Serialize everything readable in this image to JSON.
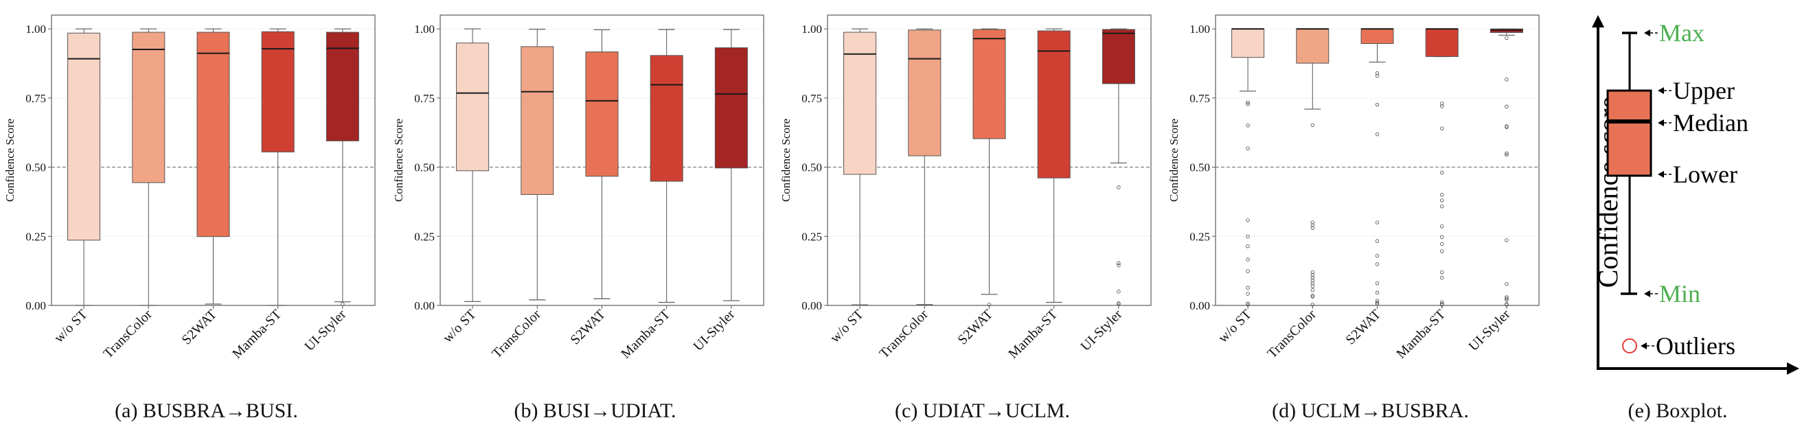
{
  "colors": [
    "#f7d4c4",
    "#f0a586",
    "#e87255",
    "#cf4033",
    "#a32524"
  ],
  "chart_data": [
    {
      "type": "boxplot",
      "caption": "(a) BUSBRA→BUSI.",
      "ylabel": "Confidence Score",
      "ylim": [
        0,
        1.05
      ],
      "yticks": [
        "0.00",
        "0.25",
        "0.50",
        "0.75",
        "1.00"
      ],
      "reference_line": 0.5,
      "categories": [
        "w/o ST",
        "TransColor",
        "S2WAT",
        "Mamba-ST",
        "UI-Styler"
      ],
      "boxes": [
        {
          "min": 0.0,
          "q1": 0.236,
          "median": 0.892,
          "q3": 0.985,
          "max": 1.0,
          "outliers": []
        },
        {
          "min": 0.0,
          "q1": 0.444,
          "median": 0.926,
          "q3": 0.988,
          "max": 1.0,
          "outliers": []
        },
        {
          "min": 0.005,
          "q1": 0.249,
          "median": 0.912,
          "q3": 0.988,
          "max": 1.0,
          "outliers": []
        },
        {
          "min": 0.0,
          "q1": 0.555,
          "median": 0.928,
          "q3": 0.99,
          "max": 1.0,
          "outliers": []
        },
        {
          "min": 0.013,
          "q1": 0.595,
          "median": 0.93,
          "q3": 0.988,
          "max": 1.0,
          "outliers": [
            0.005
          ]
        }
      ]
    },
    {
      "type": "boxplot",
      "caption": "(b) BUSI→UDIAT.",
      "ylabel": "Confidence Score",
      "ylim": [
        0,
        1.05
      ],
      "yticks": [
        "0.00",
        "0.25",
        "0.50",
        "0.75",
        "1.00"
      ],
      "reference_line": 0.5,
      "categories": [
        "w/o ST",
        "TransColor",
        "S2WAT",
        "Mamba-ST",
        "UI-Styler"
      ],
      "boxes": [
        {
          "min": 0.014,
          "q1": 0.487,
          "median": 0.768,
          "q3": 0.949,
          "max": 1.0,
          "outliers": []
        },
        {
          "min": 0.02,
          "q1": 0.401,
          "median": 0.773,
          "q3": 0.936,
          "max": 0.999,
          "outliers": []
        },
        {
          "min": 0.024,
          "q1": 0.467,
          "median": 0.74,
          "q3": 0.917,
          "max": 0.997,
          "outliers": []
        },
        {
          "min": 0.011,
          "q1": 0.449,
          "median": 0.798,
          "q3": 0.904,
          "max": 0.998,
          "outliers": []
        },
        {
          "min": 0.017,
          "q1": 0.497,
          "median": 0.765,
          "q3": 0.932,
          "max": 0.998,
          "outliers": []
        }
      ]
    },
    {
      "type": "boxplot",
      "caption": "(c) UDIAT→UCLM.",
      "ylabel": "Confidence Score",
      "ylim": [
        0,
        1.05
      ],
      "yticks": [
        "0.00",
        "0.25",
        "0.50",
        "0.75",
        "1.00"
      ],
      "reference_line": 0.5,
      "categories": [
        "w/o ST",
        "TransColor",
        "S2WAT",
        "Mamba-ST",
        "UI-Styler"
      ],
      "boxes": [
        {
          "min": 0.002,
          "q1": 0.474,
          "median": 0.909,
          "q3": 0.988,
          "max": 1.0,
          "outliers": []
        },
        {
          "min": 0.003,
          "q1": 0.541,
          "median": 0.892,
          "q3": 0.996,
          "max": 1.0,
          "outliers": []
        },
        {
          "min": 0.04,
          "q1": 0.603,
          "median": 0.965,
          "q3": 0.998,
          "max": 1.0,
          "outliers": [
            0.003
          ]
        },
        {
          "min": 0.011,
          "q1": 0.461,
          "median": 0.92,
          "q3": 0.993,
          "max": 1.0,
          "outliers": []
        },
        {
          "min": 0.515,
          "q1": 0.802,
          "median": 0.984,
          "q3": 0.998,
          "max": 1.0,
          "outliers": [
            0.427,
            0.153,
            0.145,
            0.05,
            0.008,
            0.004
          ]
        }
      ]
    },
    {
      "type": "boxplot",
      "caption": "(d) UCLM→BUSBRA.",
      "ylabel": "Confidence Score",
      "ylim": [
        0,
        1.05
      ],
      "yticks": [
        "0.00",
        "0.25",
        "0.50",
        "0.75",
        "1.00"
      ],
      "reference_line": 0.5,
      "categories": [
        "w/o ST",
        "TransColor",
        "S2WAT",
        "Mamba-ST",
        "UI-Styler"
      ],
      "boxes": [
        {
          "min": 0.775,
          "q1": 0.897,
          "median": 1.0,
          "q3": 1.0,
          "max": 1.0,
          "outliers": [
            0.734,
            0.728,
            0.651,
            0.568,
            0.308,
            0.249,
            0.214,
            0.166,
            0.124,
            0.064,
            0.042,
            0.007,
            0.003
          ]
        },
        {
          "min": 0.71,
          "q1": 0.876,
          "median": 1.0,
          "q3": 1.0,
          "max": 1.0,
          "outliers": [
            0.652,
            0.3,
            0.29,
            0.28,
            0.12,
            0.11,
            0.1,
            0.09,
            0.08,
            0.07,
            0.055,
            0.035,
            0.032,
            0.003
          ]
        },
        {
          "min": 0.88,
          "q1": 0.947,
          "median": 1.0,
          "q3": 1.0,
          "max": 1.0,
          "outliers": [
            0.84,
            0.83,
            0.726,
            0.619,
            0.3,
            0.233,
            0.179,
            0.149,
            0.08,
            0.046,
            0.017,
            0.01,
            0.005
          ]
        },
        {
          "min": 0.9,
          "q1": 0.9,
          "median": 1.0,
          "q3": 1.0,
          "max": 1.0,
          "outliers": [
            0.73,
            0.72,
            0.64,
            0.48,
            0.4,
            0.38,
            0.358,
            0.286,
            0.247,
            0.222,
            0.196,
            0.12,
            0.1,
            0.012,
            0.006,
            0.002
          ]
        },
        {
          "min": 0.977,
          "q1": 0.987,
          "median": 0.996,
          "q3": 1.0,
          "max": 1.0,
          "outliers": [
            0.967,
            0.817,
            0.719,
            0.648,
            0.645,
            0.55,
            0.545,
            0.236,
            0.077,
            0.03,
            0.025,
            0.02,
            0.005,
            0.002
          ]
        }
      ]
    }
  ],
  "legend_panel": {
    "caption": "(e) Boxplot.",
    "axis_label": "Confidence score",
    "labels": {
      "max": "Max",
      "upper": "Upper",
      "median": "Median",
      "lower": "Lower",
      "min": "Min",
      "outliers": "Outliers"
    },
    "highlight_color": "#4caf50",
    "box_color": "#e87255",
    "outlier_color": "#e53935"
  }
}
